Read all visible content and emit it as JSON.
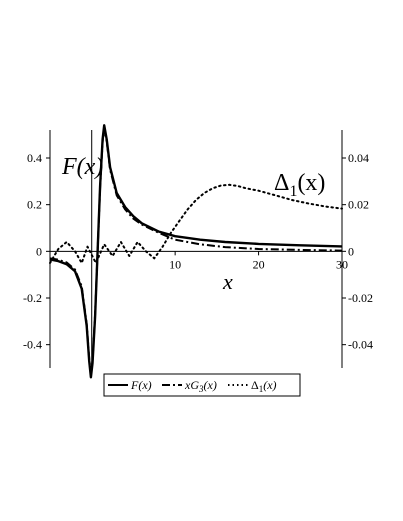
{
  "chart_data": {
    "type": "line",
    "xlabel": "x",
    "xlim": [
      -5,
      30
    ],
    "xticks": [
      "10",
      "20",
      "30"
    ],
    "left_axis": {
      "ylim": [
        -0.5,
        0.52
      ],
      "ticks": [
        "0.4",
        "0.2",
        "0",
        "-0.2",
        "-0.4"
      ],
      "tick_values": [
        0.4,
        0.2,
        0,
        -0.2,
        -0.4
      ],
      "label": "F(x)"
    },
    "right_axis": {
      "ylim": [
        -0.05,
        0.052
      ],
      "ticks": [
        "0.04",
        "0.02",
        "0",
        "-0.02",
        "-0.04"
      ],
      "tick_values": [
        0.04,
        0.02,
        0,
        -0.02,
        -0.04
      ],
      "label": "Δ1(x)"
    },
    "series": [
      {
        "name": "F(x)",
        "axis": "left",
        "style": "solid",
        "points": [
          [
            -5,
            -0.035
          ],
          [
            -4,
            -0.042
          ],
          [
            -3,
            -0.055
          ],
          [
            -2,
            -0.085
          ],
          [
            -1.2,
            -0.16
          ],
          [
            -0.6,
            -0.32
          ],
          [
            -0.3,
            -0.47
          ],
          [
            -0.1,
            -0.54
          ],
          [
            0.1,
            -0.48
          ],
          [
            0.4,
            -0.28
          ],
          [
            0.7,
            0
          ],
          [
            1.0,
            0.28
          ],
          [
            1.3,
            0.48
          ],
          [
            1.5,
            0.54
          ],
          [
            1.8,
            0.48
          ],
          [
            2.2,
            0.36
          ],
          [
            3,
            0.25
          ],
          [
            4,
            0.19
          ],
          [
            5,
            0.15
          ],
          [
            6,
            0.12
          ],
          [
            8,
            0.085
          ],
          [
            10,
            0.065
          ],
          [
            13,
            0.05
          ],
          [
            16,
            0.04
          ],
          [
            20,
            0.032
          ],
          [
            25,
            0.026
          ],
          [
            30,
            0.021
          ]
        ]
      },
      {
        "name": "xG3(x)",
        "axis": "left",
        "style": "dash-dot",
        "points": [
          [
            -5,
            -0.03
          ],
          [
            -4,
            -0.036
          ],
          [
            -3,
            -0.048
          ],
          [
            -2,
            -0.078
          ],
          [
            -1.2,
            -0.15
          ],
          [
            -0.6,
            -0.31
          ],
          [
            -0.3,
            -0.46
          ],
          [
            -0.1,
            -0.53
          ],
          [
            0.1,
            -0.47
          ],
          [
            0.4,
            -0.27
          ],
          [
            0.7,
            0
          ],
          [
            1.0,
            0.27
          ],
          [
            1.3,
            0.47
          ],
          [
            1.5,
            0.53
          ],
          [
            1.8,
            0.47
          ],
          [
            2.2,
            0.35
          ],
          [
            3,
            0.24
          ],
          [
            4,
            0.18
          ],
          [
            5,
            0.14
          ],
          [
            6,
            0.115
          ],
          [
            8,
            0.08
          ],
          [
            10,
            0.05
          ],
          [
            13,
            0.03
          ],
          [
            16,
            0.018
          ],
          [
            20,
            0.01
          ],
          [
            25,
            0.006
          ],
          [
            30,
            0.003
          ]
        ]
      },
      {
        "name": "Δ1(x)",
        "axis": "right",
        "style": "dotted",
        "points": [
          [
            -5,
            -0.005
          ],
          [
            -4,
            0.001
          ],
          [
            -3,
            0.004
          ],
          [
            -2,
            0
          ],
          [
            -1.2,
            -0.005
          ],
          [
            -0.5,
            0.002
          ],
          [
            0.5,
            -0.005
          ],
          [
            1.5,
            0.003
          ],
          [
            2.5,
            -0.002
          ],
          [
            3.5,
            0.004
          ],
          [
            4.5,
            -0.002
          ],
          [
            5.5,
            0.004
          ],
          [
            6.5,
            0
          ],
          [
            7.5,
            -0.003
          ],
          [
            8.5,
            0.002
          ],
          [
            9.5,
            0.008
          ],
          [
            10.5,
            0.013
          ],
          [
            11.5,
            0.018
          ],
          [
            12.5,
            0.022
          ],
          [
            13.5,
            0.025
          ],
          [
            14.5,
            0.027
          ],
          [
            15.5,
            0.0282
          ],
          [
            16.5,
            0.0285
          ],
          [
            17.5,
            0.028
          ],
          [
            18.5,
            0.027
          ],
          [
            20,
            0.026
          ],
          [
            22,
            0.024
          ],
          [
            24,
            0.022
          ],
          [
            26,
            0.0205
          ],
          [
            28,
            0.0192
          ],
          [
            30,
            0.0183
          ]
        ]
      }
    ],
    "inline_labels": {
      "left": "F(x)",
      "right_main": "Δ",
      "right_sub": "1",
      "right_tail": "(x)"
    },
    "legend": {
      "placement": "bottom",
      "entries": [
        {
          "main": "F(x)",
          "style": "solid"
        },
        {
          "main": "xG",
          "sub": "3",
          "tail": "(x)",
          "style": "dash-dot"
        },
        {
          "main": "Δ",
          "sub": "1",
          "tail": "(x)",
          "style": "dotted"
        }
      ]
    },
    "grid": false
  }
}
